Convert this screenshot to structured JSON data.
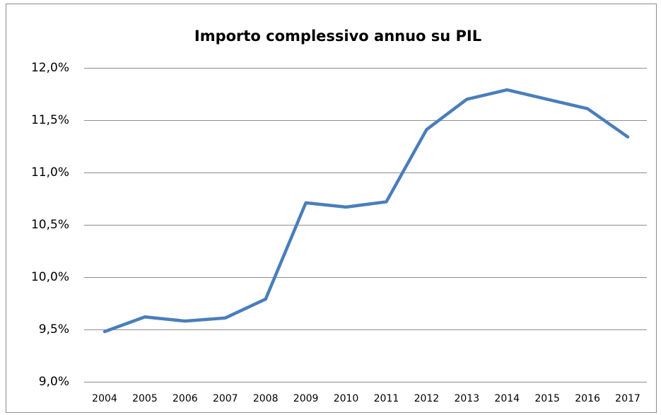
{
  "chart_data": {
    "type": "line",
    "title": "Importo complessivo annuo su PIL",
    "categories": [
      "2004",
      "2005",
      "2006",
      "2007",
      "2008",
      "2009",
      "2010",
      "2011",
      "2012",
      "2013",
      "2014",
      "2015",
      "2016",
      "2017"
    ],
    "series": [
      {
        "name": "Importo complessivo annuo su PIL",
        "color": "#4a7ebb",
        "values": [
          9.48,
          9.62,
          9.58,
          9.61,
          9.79,
          10.71,
          10.67,
          10.72,
          11.41,
          11.7,
          11.79,
          11.7,
          11.61,
          11.34
        ]
      }
    ],
    "ylim": [
      9.0,
      12.0
    ],
    "yticks": [
      {
        "value": 9.0,
        "label": "9,0%"
      },
      {
        "value": 9.5,
        "label": "9,5%"
      },
      {
        "value": 10.0,
        "label": "10,0%"
      },
      {
        "value": 10.5,
        "label": "10,5%"
      },
      {
        "value": 11.0,
        "label": "11,0%"
      },
      {
        "value": 11.5,
        "label": "11,5%"
      },
      {
        "value": 12.0,
        "label": "12,0%"
      }
    ],
    "grid": true
  }
}
